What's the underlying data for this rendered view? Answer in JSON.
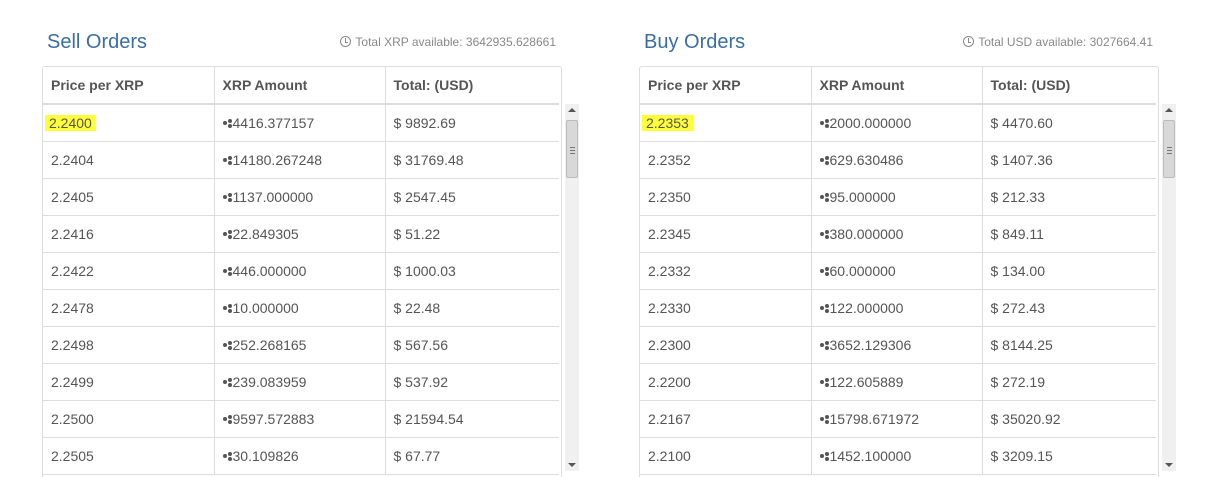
{
  "sell": {
    "title": "Sell Orders",
    "available": "Total XRP available: 3642935.628661",
    "headers": [
      "Price per XRP",
      "XRP Amount",
      "Total: (USD)"
    ],
    "rows": [
      {
        "price": "2.2400",
        "amount": "4416.377157",
        "total": "$ 9892.69",
        "highlight": true
      },
      {
        "price": "2.2404",
        "amount": "14180.267248",
        "total": "$ 31769.48"
      },
      {
        "price": "2.2405",
        "amount": "1137.000000",
        "total": "$ 2547.45"
      },
      {
        "price": "2.2416",
        "amount": "22.849305",
        "total": "$ 51.22"
      },
      {
        "price": "2.2422",
        "amount": "446.000000",
        "total": "$ 1000.03"
      },
      {
        "price": "2.2478",
        "amount": "10.000000",
        "total": "$ 22.48"
      },
      {
        "price": "2.2498",
        "amount": "252.268165",
        "total": "$ 567.56"
      },
      {
        "price": "2.2499",
        "amount": "239.083959",
        "total": "$ 537.92"
      },
      {
        "price": "2.2500",
        "amount": "9597.572883",
        "total": "$ 21594.54"
      },
      {
        "price": "2.2505",
        "amount": "30.109826",
        "total": "$ 67.77"
      }
    ]
  },
  "buy": {
    "title": "Buy Orders",
    "available": "Total USD available: 3027664.41",
    "headers": [
      "Price per XRP",
      "XRP Amount",
      "Total: (USD)"
    ],
    "rows": [
      {
        "price": "2.2353",
        "amount": "2000.000000",
        "total": "$ 4470.60",
        "highlight": true
      },
      {
        "price": "2.2352",
        "amount": "629.630486",
        "total": "$ 1407.36"
      },
      {
        "price": "2.2350",
        "amount": "95.000000",
        "total": "$ 212.33"
      },
      {
        "price": "2.2345",
        "amount": "380.000000",
        "total": "$ 849.11"
      },
      {
        "price": "2.2332",
        "amount": "60.000000",
        "total": "$ 134.00"
      },
      {
        "price": "2.2330",
        "amount": "122.000000",
        "total": "$ 272.43"
      },
      {
        "price": "2.2300",
        "amount": "3652.129306",
        "total": "$ 8144.25"
      },
      {
        "price": "2.2200",
        "amount": "122.605889",
        "total": "$ 272.19"
      },
      {
        "price": "2.2167",
        "amount": "15798.671972",
        "total": "$ 35020.92"
      },
      {
        "price": "2.2100",
        "amount": "1452.100000",
        "total": "$ 3209.15"
      }
    ]
  },
  "icons": {
    "available": "clock-icon",
    "amount": "xrp-icon"
  },
  "colors": {
    "title": "#3a6ea5",
    "highlight": "#ffff3a"
  }
}
